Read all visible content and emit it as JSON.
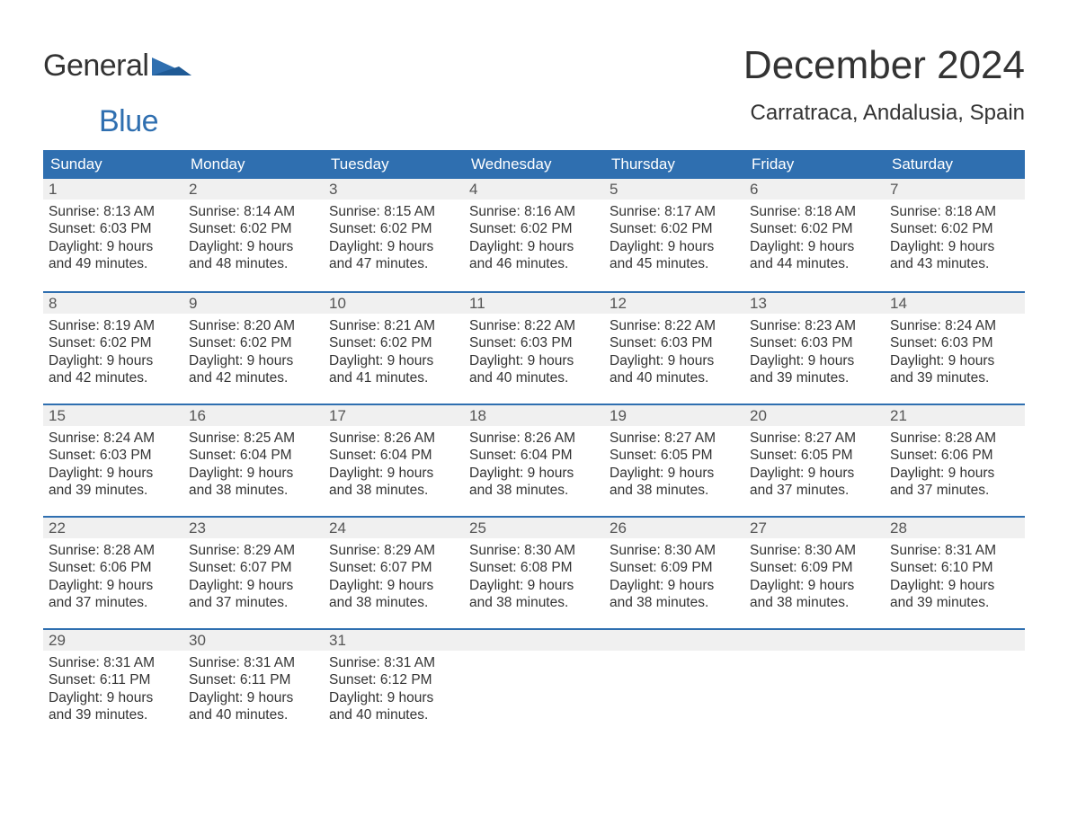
{
  "logo": {
    "part1": "General",
    "part2": "Blue"
  },
  "header": {
    "month_title": "December 2024",
    "location": "Carratraca, Andalusia, Spain"
  },
  "colors": {
    "header_bg": "#2f6fb0",
    "header_text": "#ffffff",
    "daynum_bg": "#f0f0f0",
    "border_top": "#2f6fb0",
    "body_text": "#333333"
  },
  "day_labels": [
    "Sunday",
    "Monday",
    "Tuesday",
    "Wednesday",
    "Thursday",
    "Friday",
    "Saturday"
  ],
  "weeks": [
    [
      {
        "n": "1",
        "sunrise": "Sunrise: 8:13 AM",
        "sunset": "Sunset: 6:03 PM",
        "day1": "Daylight: 9 hours",
        "day2": "and 49 minutes."
      },
      {
        "n": "2",
        "sunrise": "Sunrise: 8:14 AM",
        "sunset": "Sunset: 6:02 PM",
        "day1": "Daylight: 9 hours",
        "day2": "and 48 minutes."
      },
      {
        "n": "3",
        "sunrise": "Sunrise: 8:15 AM",
        "sunset": "Sunset: 6:02 PM",
        "day1": "Daylight: 9 hours",
        "day2": "and 47 minutes."
      },
      {
        "n": "4",
        "sunrise": "Sunrise: 8:16 AM",
        "sunset": "Sunset: 6:02 PM",
        "day1": "Daylight: 9 hours",
        "day2": "and 46 minutes."
      },
      {
        "n": "5",
        "sunrise": "Sunrise: 8:17 AM",
        "sunset": "Sunset: 6:02 PM",
        "day1": "Daylight: 9 hours",
        "day2": "and 45 minutes."
      },
      {
        "n": "6",
        "sunrise": "Sunrise: 8:18 AM",
        "sunset": "Sunset: 6:02 PM",
        "day1": "Daylight: 9 hours",
        "day2": "and 44 minutes."
      },
      {
        "n": "7",
        "sunrise": "Sunrise: 8:18 AM",
        "sunset": "Sunset: 6:02 PM",
        "day1": "Daylight: 9 hours",
        "day2": "and 43 minutes."
      }
    ],
    [
      {
        "n": "8",
        "sunrise": "Sunrise: 8:19 AM",
        "sunset": "Sunset: 6:02 PM",
        "day1": "Daylight: 9 hours",
        "day2": "and 42 minutes."
      },
      {
        "n": "9",
        "sunrise": "Sunrise: 8:20 AM",
        "sunset": "Sunset: 6:02 PM",
        "day1": "Daylight: 9 hours",
        "day2": "and 42 minutes."
      },
      {
        "n": "10",
        "sunrise": "Sunrise: 8:21 AM",
        "sunset": "Sunset: 6:02 PM",
        "day1": "Daylight: 9 hours",
        "day2": "and 41 minutes."
      },
      {
        "n": "11",
        "sunrise": "Sunrise: 8:22 AM",
        "sunset": "Sunset: 6:03 PM",
        "day1": "Daylight: 9 hours",
        "day2": "and 40 minutes."
      },
      {
        "n": "12",
        "sunrise": "Sunrise: 8:22 AM",
        "sunset": "Sunset: 6:03 PM",
        "day1": "Daylight: 9 hours",
        "day2": "and 40 minutes."
      },
      {
        "n": "13",
        "sunrise": "Sunrise: 8:23 AM",
        "sunset": "Sunset: 6:03 PM",
        "day1": "Daylight: 9 hours",
        "day2": "and 39 minutes."
      },
      {
        "n": "14",
        "sunrise": "Sunrise: 8:24 AM",
        "sunset": "Sunset: 6:03 PM",
        "day1": "Daylight: 9 hours",
        "day2": "and 39 minutes."
      }
    ],
    [
      {
        "n": "15",
        "sunrise": "Sunrise: 8:24 AM",
        "sunset": "Sunset: 6:03 PM",
        "day1": "Daylight: 9 hours",
        "day2": "and 39 minutes."
      },
      {
        "n": "16",
        "sunrise": "Sunrise: 8:25 AM",
        "sunset": "Sunset: 6:04 PM",
        "day1": "Daylight: 9 hours",
        "day2": "and 38 minutes."
      },
      {
        "n": "17",
        "sunrise": "Sunrise: 8:26 AM",
        "sunset": "Sunset: 6:04 PM",
        "day1": "Daylight: 9 hours",
        "day2": "and 38 minutes."
      },
      {
        "n": "18",
        "sunrise": "Sunrise: 8:26 AM",
        "sunset": "Sunset: 6:04 PM",
        "day1": "Daylight: 9 hours",
        "day2": "and 38 minutes."
      },
      {
        "n": "19",
        "sunrise": "Sunrise: 8:27 AM",
        "sunset": "Sunset: 6:05 PM",
        "day1": "Daylight: 9 hours",
        "day2": "and 38 minutes."
      },
      {
        "n": "20",
        "sunrise": "Sunrise: 8:27 AM",
        "sunset": "Sunset: 6:05 PM",
        "day1": "Daylight: 9 hours",
        "day2": "and 37 minutes."
      },
      {
        "n": "21",
        "sunrise": "Sunrise: 8:28 AM",
        "sunset": "Sunset: 6:06 PM",
        "day1": "Daylight: 9 hours",
        "day2": "and 37 minutes."
      }
    ],
    [
      {
        "n": "22",
        "sunrise": "Sunrise: 8:28 AM",
        "sunset": "Sunset: 6:06 PM",
        "day1": "Daylight: 9 hours",
        "day2": "and 37 minutes."
      },
      {
        "n": "23",
        "sunrise": "Sunrise: 8:29 AM",
        "sunset": "Sunset: 6:07 PM",
        "day1": "Daylight: 9 hours",
        "day2": "and 37 minutes."
      },
      {
        "n": "24",
        "sunrise": "Sunrise: 8:29 AM",
        "sunset": "Sunset: 6:07 PM",
        "day1": "Daylight: 9 hours",
        "day2": "and 38 minutes."
      },
      {
        "n": "25",
        "sunrise": "Sunrise: 8:30 AM",
        "sunset": "Sunset: 6:08 PM",
        "day1": "Daylight: 9 hours",
        "day2": "and 38 minutes."
      },
      {
        "n": "26",
        "sunrise": "Sunrise: 8:30 AM",
        "sunset": "Sunset: 6:09 PM",
        "day1": "Daylight: 9 hours",
        "day2": "and 38 minutes."
      },
      {
        "n": "27",
        "sunrise": "Sunrise: 8:30 AM",
        "sunset": "Sunset: 6:09 PM",
        "day1": "Daylight: 9 hours",
        "day2": "and 38 minutes."
      },
      {
        "n": "28",
        "sunrise": "Sunrise: 8:31 AM",
        "sunset": "Sunset: 6:10 PM",
        "day1": "Daylight: 9 hours",
        "day2": "and 39 minutes."
      }
    ],
    [
      {
        "n": "29",
        "sunrise": "Sunrise: 8:31 AM",
        "sunset": "Sunset: 6:11 PM",
        "day1": "Daylight: 9 hours",
        "day2": "and 39 minutes."
      },
      {
        "n": "30",
        "sunrise": "Sunrise: 8:31 AM",
        "sunset": "Sunset: 6:11 PM",
        "day1": "Daylight: 9 hours",
        "day2": "and 40 minutes."
      },
      {
        "n": "31",
        "sunrise": "Sunrise: 8:31 AM",
        "sunset": "Sunset: 6:12 PM",
        "day1": "Daylight: 9 hours",
        "day2": "and 40 minutes."
      },
      {
        "empty": true
      },
      {
        "empty": true
      },
      {
        "empty": true
      },
      {
        "empty": true
      }
    ]
  ]
}
